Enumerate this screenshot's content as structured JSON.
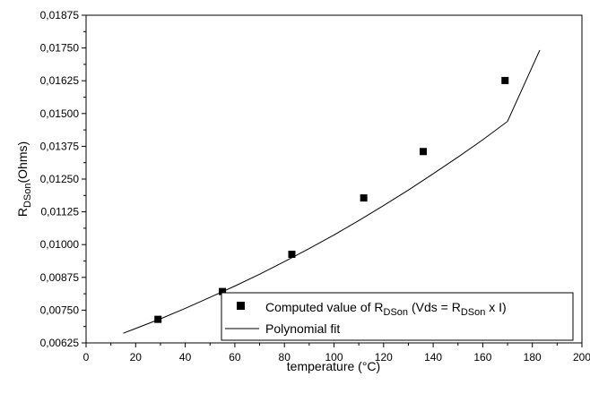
{
  "chart_data": {
    "type": "scatter",
    "xlabel": "temperature (°C)",
    "ylabel": {
      "main": "R",
      "sub": "DSon",
      "rest": "(Ohms)"
    },
    "xlim": [
      0,
      200
    ],
    "ylim": [
      0.00625,
      0.01875
    ],
    "x_ticks": [
      0,
      20,
      40,
      60,
      80,
      100,
      120,
      140,
      160,
      180,
      200
    ],
    "x_tick_labels": [
      "0",
      "20",
      "40",
      "60",
      "80",
      "100",
      "120",
      "140",
      "160",
      "180",
      "200"
    ],
    "y_ticks": [
      0.00625,
      0.0075,
      0.00875,
      0.01,
      0.01125,
      0.0125,
      0.01375,
      0.015,
      0.01625,
      0.0175,
      0.01875
    ],
    "y_tick_labels": [
      "0,00625",
      "0,00750",
      "0,00875",
      "0,01000",
      "0,01125",
      "0,01250",
      "0,01375",
      "0,01500",
      "0,01625",
      "0,01750",
      "0,01875"
    ],
    "grid": false,
    "legend_position": "bottom-right",
    "series": [
      {
        "name": "Computed value of R_DSon (Vds = R_DSon x I)",
        "kind": "scatter",
        "marker": "square",
        "x": [
          29,
          55,
          83,
          112,
          136,
          169
        ],
        "y": [
          0.00715,
          0.00821,
          0.00963,
          0.01178,
          0.01355,
          0.01626
        ]
      },
      {
        "name": "Polynomial fit",
        "kind": "line",
        "x": [
          15,
          20,
          30,
          40,
          50,
          60,
          70,
          80,
          90,
          100,
          110,
          120,
          130,
          140,
          150,
          160,
          170,
          183
        ],
        "y": [
          0.00662,
          0.0068,
          0.00717,
          0.00757,
          0.00799,
          0.00842,
          0.00887,
          0.00935,
          0.00985,
          0.01037,
          0.01092,
          0.01149,
          0.01208,
          0.0127,
          0.01334,
          0.014,
          0.0147,
          0.01742
        ]
      }
    ],
    "legend": {
      "scatter_label": {
        "pre": "Computed value of R",
        "sub1": "DSon",
        "mid": " (Vds = R",
        "sub2": "DSon",
        "post": " x I)"
      },
      "line_label": "Polynomial fit"
    }
  },
  "colors": {
    "ink": "#000000",
    "background": "#ffffff"
  }
}
